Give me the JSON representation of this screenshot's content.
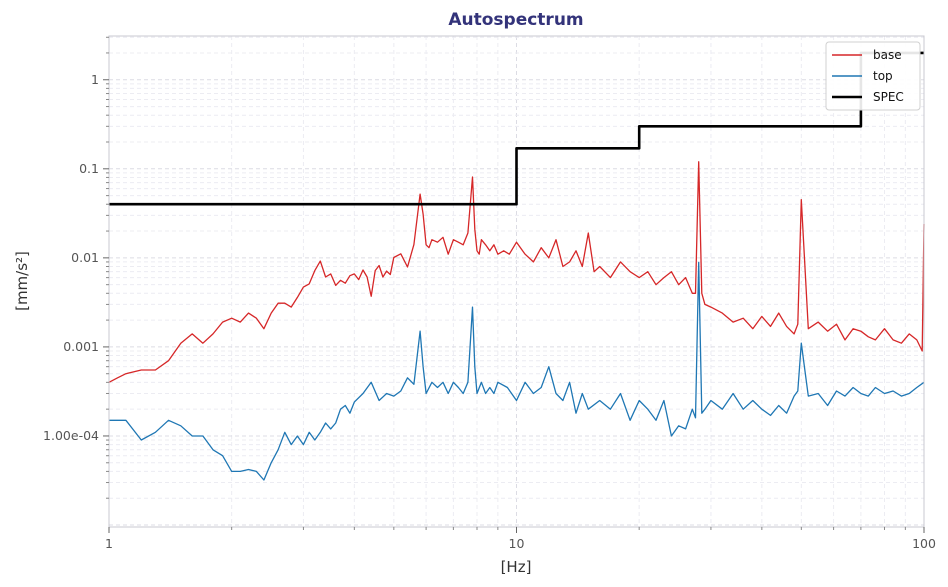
{
  "chart_data": {
    "type": "line",
    "title": "Autospectrum",
    "xlabel": "[Hz]",
    "ylabel": "[mm/s²]",
    "xscale": "log",
    "yscale": "log",
    "xlim": [
      1,
      100
    ],
    "ylim": [
      9.5e-06,
      3.1
    ],
    "x_ticks": [
      {
        "value": 1,
        "label": "1"
      },
      {
        "value": 10,
        "label": "10"
      },
      {
        "value": 100,
        "label": "100"
      }
    ],
    "y_ticks": [
      {
        "value": 0.0001,
        "label": "1.00e-04"
      },
      {
        "value": 0.001,
        "label": "0.001"
      },
      {
        "value": 0.01,
        "label": "0.01"
      },
      {
        "value": 0.1,
        "label": "0.1"
      },
      {
        "value": 1,
        "label": "1"
      }
    ],
    "grid": true,
    "legend_position": "top-right",
    "series": [
      {
        "name": "base",
        "color": "#d62728",
        "x": [
          1,
          1.05,
          1.1,
          1.2,
          1.3,
          1.4,
          1.5,
          1.6,
          1.7,
          1.8,
          1.9,
          2.0,
          2.1,
          2.2,
          2.3,
          2.4,
          2.5,
          2.6,
          2.7,
          2.8,
          2.9,
          3.0,
          3.1,
          3.2,
          3.3,
          3.4,
          3.5,
          3.6,
          3.7,
          3.8,
          3.9,
          4.0,
          4.1,
          4.2,
          4.3,
          4.4,
          4.5,
          4.6,
          4.7,
          4.8,
          4.9,
          5.0,
          5.2,
          5.4,
          5.6,
          5.8,
          5.9,
          6.0,
          6.1,
          6.2,
          6.4,
          6.6,
          6.8,
          7.0,
          7.2,
          7.4,
          7.6,
          7.8,
          7.9,
          8.0,
          8.1,
          8.2,
          8.4,
          8.6,
          8.8,
          9.0,
          9.3,
          9.6,
          10,
          10.5,
          11,
          11.5,
          12,
          12.5,
          13,
          13.5,
          14,
          14.5,
          15,
          15.5,
          16,
          17,
          18,
          19,
          20,
          21,
          22,
          23,
          24,
          25,
          26,
          27,
          27.5,
          28,
          28.5,
          29,
          30,
          32,
          34,
          36,
          38,
          40,
          42,
          44,
          46,
          48,
          49,
          50,
          52,
          55,
          58,
          61,
          64,
          67,
          70,
          73,
          76,
          80,
          84,
          88,
          92,
          96,
          99,
          100
        ],
        "y": [
          0.0004,
          0.00045,
          0.0005,
          0.00055,
          0.00055,
          0.0007,
          0.0011,
          0.0014,
          0.0011,
          0.0014,
          0.0019,
          0.0021,
          0.0019,
          0.0024,
          0.0021,
          0.0016,
          0.0024,
          0.0031,
          0.0031,
          0.0028,
          0.0036,
          0.0047,
          0.0051,
          0.0072,
          0.0092,
          0.0061,
          0.0066,
          0.0049,
          0.0056,
          0.0052,
          0.0063,
          0.0066,
          0.0057,
          0.0073,
          0.0061,
          0.0037,
          0.0072,
          0.0082,
          0.0061,
          0.0071,
          0.0065,
          0.0101,
          0.0111,
          0.0079,
          0.0141,
          0.052,
          0.031,
          0.014,
          0.013,
          0.016,
          0.015,
          0.017,
          0.011,
          0.016,
          0.015,
          0.014,
          0.019,
          0.081,
          0.021,
          0.012,
          0.011,
          0.016,
          0.014,
          0.012,
          0.014,
          0.011,
          0.012,
          0.011,
          0.015,
          0.011,
          0.009,
          0.013,
          0.01,
          0.016,
          0.008,
          0.009,
          0.012,
          0.008,
          0.019,
          0.007,
          0.008,
          0.006,
          0.009,
          0.007,
          0.006,
          0.007,
          0.005,
          0.006,
          0.007,
          0.005,
          0.006,
          0.004,
          0.004,
          0.12,
          0.004,
          0.003,
          0.0028,
          0.0024,
          0.0019,
          0.0021,
          0.0016,
          0.0022,
          0.0017,
          0.0024,
          0.0017,
          0.0014,
          0.0018,
          0.045,
          0.0016,
          0.0019,
          0.0015,
          0.0018,
          0.0012,
          0.0016,
          0.0015,
          0.0013,
          0.0012,
          0.0016,
          0.0012,
          0.0011,
          0.0014,
          0.0012,
          0.0009,
          0.024
        ]
      },
      {
        "name": "top",
        "color": "#1f77b4",
        "x": [
          1,
          1.1,
          1.2,
          1.3,
          1.4,
          1.5,
          1.6,
          1.7,
          1.8,
          1.9,
          2.0,
          2.1,
          2.2,
          2.3,
          2.4,
          2.5,
          2.6,
          2.7,
          2.8,
          2.9,
          3.0,
          3.1,
          3.2,
          3.3,
          3.4,
          3.5,
          3.6,
          3.7,
          3.8,
          3.9,
          4.0,
          4.2,
          4.4,
          4.6,
          4.8,
          5.0,
          5.2,
          5.4,
          5.6,
          5.8,
          5.9,
          6.0,
          6.2,
          6.4,
          6.6,
          6.8,
          7.0,
          7.2,
          7.4,
          7.6,
          7.8,
          7.9,
          8.0,
          8.2,
          8.4,
          8.6,
          8.8,
          9.0,
          9.5,
          10,
          10.5,
          11,
          11.5,
          12,
          12.5,
          13,
          13.5,
          14,
          14.5,
          15,
          16,
          17,
          18,
          19,
          20,
          21,
          22,
          23,
          24,
          25,
          26,
          27,
          27.5,
          28,
          28.5,
          29,
          30,
          32,
          34,
          36,
          38,
          40,
          42,
          44,
          46,
          48,
          49,
          50,
          52,
          55,
          58,
          61,
          64,
          67,
          70,
          73,
          76,
          80,
          84,
          88,
          92,
          96,
          100
        ],
        "y": [
          0.00015,
          0.00015,
          9e-05,
          0.00011,
          0.00015,
          0.00013,
          0.0001,
          0.0001,
          7e-05,
          6e-05,
          4e-05,
          4e-05,
          4.2e-05,
          4e-05,
          3.2e-05,
          5e-05,
          7e-05,
          0.00011,
          8e-05,
          0.0001,
          8e-05,
          0.00011,
          9e-05,
          0.00011,
          0.00014,
          0.00012,
          0.00014,
          0.0002,
          0.00022,
          0.00018,
          0.00024,
          0.0003,
          0.0004,
          0.00025,
          0.0003,
          0.00028,
          0.00032,
          0.00045,
          0.00038,
          0.0015,
          0.0006,
          0.0003,
          0.0004,
          0.00035,
          0.0004,
          0.0003,
          0.0004,
          0.00035,
          0.0003,
          0.0004,
          0.0028,
          0.0006,
          0.0003,
          0.0004,
          0.0003,
          0.00035,
          0.0003,
          0.0004,
          0.00035,
          0.00025,
          0.0004,
          0.0003,
          0.00035,
          0.0006,
          0.0003,
          0.00025,
          0.0004,
          0.00018,
          0.0003,
          0.0002,
          0.00025,
          0.0002,
          0.0003,
          0.00015,
          0.00025,
          0.0002,
          0.00015,
          0.00025,
          0.0001,
          0.00013,
          0.00012,
          0.0002,
          0.00016,
          0.0089,
          0.00018,
          0.0002,
          0.00025,
          0.0002,
          0.0003,
          0.0002,
          0.00025,
          0.0002,
          0.00017,
          0.00022,
          0.00018,
          0.00028,
          0.00032,
          0.0011,
          0.00028,
          0.0003,
          0.00022,
          0.00032,
          0.00028,
          0.00035,
          0.0003,
          0.00028,
          0.00035,
          0.0003,
          0.00032,
          0.00028,
          0.0003,
          0.00035,
          0.0004
        ]
      },
      {
        "name": "SPEC",
        "color": "#000000",
        "x": [
          1,
          10,
          10,
          20,
          20,
          70,
          70,
          100
        ],
        "y": [
          0.04,
          0.04,
          0.17,
          0.17,
          0.3,
          0.3,
          2.0,
          2.0
        ]
      }
    ]
  }
}
